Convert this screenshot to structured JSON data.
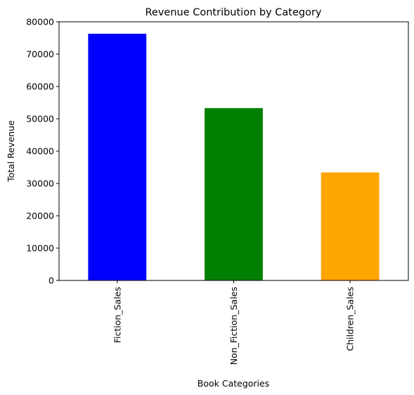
{
  "chart_data": {
    "type": "bar",
    "title": "Revenue Contribution by Category",
    "xlabel": "Book Categories",
    "ylabel": "Total Revenue",
    "categories": [
      "Fiction_Sales",
      "Non_Fiction_Sales",
      "Children_Sales"
    ],
    "values": [
      76300,
      53300,
      33400
    ],
    "colors": [
      "#0000ff",
      "#008000",
      "#ffa500"
    ],
    "ylim": [
      0,
      80000
    ],
    "yticks": [
      0,
      10000,
      20000,
      30000,
      40000,
      50000,
      60000,
      70000,
      80000
    ],
    "grid": false,
    "legend": "none"
  }
}
